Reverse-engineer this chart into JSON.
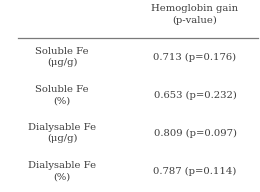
{
  "col_header": "Hemoglobin gain\n(p-value)",
  "rows": [
    {
      "label": "Soluble Fe\n(μg/g)",
      "value": "0.713 (p=0.176)"
    },
    {
      "label": "Soluble Fe\n(%)",
      "value": "0.653 (p=0.232)"
    },
    {
      "label": "Dialysable Fe\n(μg/g)",
      "value": "0.809 (p=0.097)"
    },
    {
      "label": "Dialysable Fe\n(%)",
      "value": "0.787 (p=0.114)"
    }
  ],
  "bg_color": "#ffffff",
  "text_color": "#3d3d3d",
  "line_color": "#7a7a7a",
  "font_size": 7.2,
  "header_font_size": 7.2
}
